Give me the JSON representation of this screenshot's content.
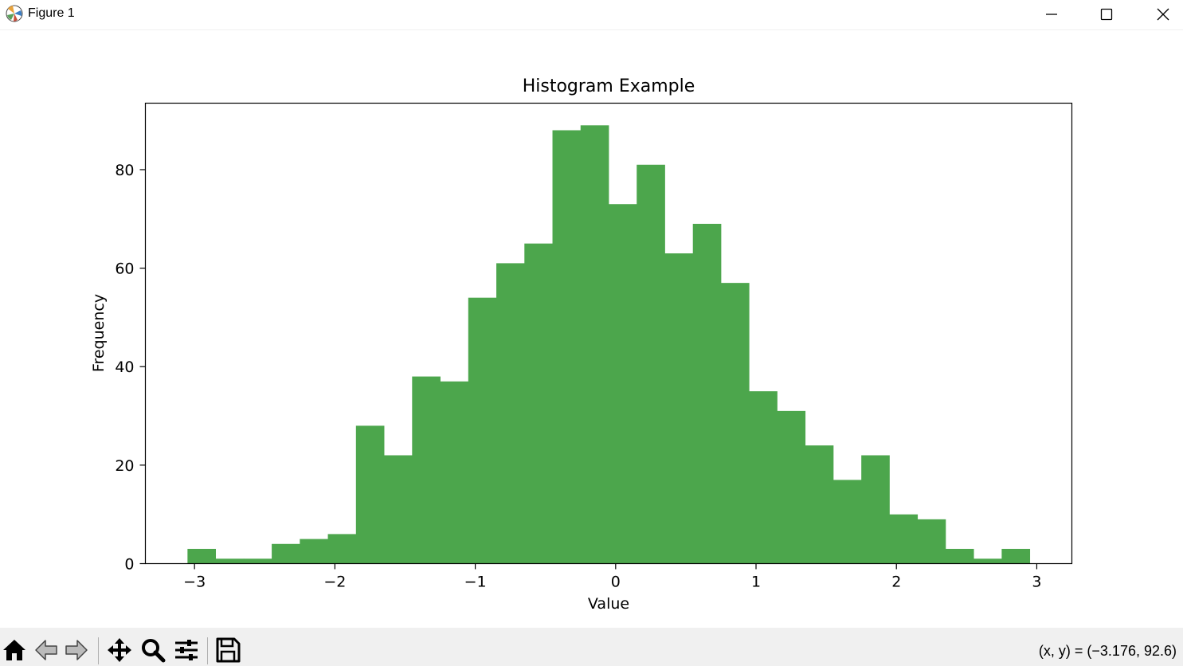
{
  "window": {
    "title": "Figure 1"
  },
  "toolbar": {
    "buttons": [
      "home-icon",
      "back-icon",
      "forward-icon",
      "pan-icon",
      "zoom-icon",
      "configure-icon",
      "save-icon"
    ],
    "coords_text": "(x, y) = (−3.176, 92.6)"
  },
  "colors": {
    "bar": "#4ca64c",
    "axis": "#000000"
  },
  "chart_data": {
    "type": "bar",
    "title": "Histogram Example",
    "xlabel": "Value",
    "ylabel": "Frequency",
    "xlim": [
      -3.35,
      3.25
    ],
    "ylim": [
      0,
      93.5
    ],
    "x_ticks": [
      -3,
      -2,
      -1,
      0,
      1,
      2,
      3
    ],
    "x_tick_labels": [
      "−3",
      "−2",
      "−1",
      "0",
      "1",
      "2",
      "3"
    ],
    "y_ticks": [
      0,
      20,
      40,
      60,
      80
    ],
    "y_tick_labels": [
      "0",
      "20",
      "40",
      "60",
      "80"
    ],
    "bin_start": -3.05,
    "bin_width": 0.2,
    "values": [
      3,
      1,
      1,
      4,
      5,
      6,
      28,
      22,
      38,
      37,
      54,
      61,
      65,
      88,
      89,
      73,
      81,
      63,
      69,
      57,
      35,
      31,
      24,
      17,
      22,
      10,
      9,
      3,
      1,
      3
    ],
    "grid": false
  }
}
